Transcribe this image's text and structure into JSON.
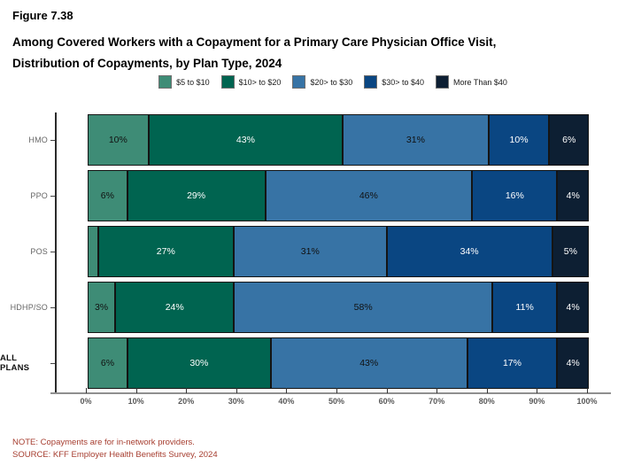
{
  "figure": {
    "label": "Figure 7.38",
    "title_line1": "Among Covered Workers with a Copayment for a Primary Care Physician Office Visit,",
    "title_line2": "Distribution of Copayments, by Plan Type, 2024"
  },
  "legend": [
    {
      "label": "$5 to $10",
      "color": "#3e8c76"
    },
    {
      "label": "$10> to $20",
      "color": "#006450"
    },
    {
      "label": "$20> to $30",
      "color": "#3773a5"
    },
    {
      "label": "$30> to $40",
      "color": "#0a4682"
    },
    {
      "label": "More Than $40",
      "color": "#0d1f33"
    }
  ],
  "chart_data": {
    "type": "bar",
    "orientation": "horizontal",
    "stacked": true,
    "title": "Among Covered Workers with a Copayment for a Primary Care Physician Office Visit, Distribution of Copayments, by Plan Type, 2024",
    "categories": [
      "HMO",
      "PPO",
      "POS",
      "HDHP/SO",
      "ALL PLANS"
    ],
    "series": [
      {
        "name": "$5 to $10",
        "color": "#3e8c76",
        "label_color": "#111111",
        "values": [
          10,
          6,
          2,
          3,
          6
        ],
        "labels": [
          "10%",
          "6%",
          "",
          "3%",
          "6%"
        ]
      },
      {
        "name": "$10> to $20",
        "color": "#006450",
        "label_color": "#ffffff",
        "values": [
          43,
          29,
          27,
          24,
          30
        ],
        "labels": [
          "43%",
          "29%",
          "27%",
          "24%",
          "30%"
        ]
      },
      {
        "name": "$20> to $30",
        "color": "#3773a5",
        "label_color": "#111111",
        "values": [
          31,
          46,
          31,
          58,
          43
        ],
        "labels": [
          "31%",
          "46%",
          "31%",
          "58%",
          "43%"
        ]
      },
      {
        "name": "$30> to $40",
        "color": "#0a4682",
        "label_color": "#ffffff",
        "values": [
          10,
          16,
          34,
          11,
          17
        ],
        "labels": [
          "10%",
          "16%",
          "34%",
          "11%",
          "17%"
        ]
      },
      {
        "name": "More Than $40",
        "color": "#0d1f33",
        "label_color": "#ffffff",
        "values": [
          6,
          4,
          5,
          4,
          4
        ],
        "labels": [
          "6%",
          "4%",
          "5%",
          "4%",
          "4%"
        ]
      }
    ],
    "x_axis": {
      "range": [
        0,
        100
      ],
      "ticks": [
        "0%",
        "10%",
        "20%",
        "30%",
        "40%",
        "50%",
        "60%",
        "70%",
        "80%",
        "90%",
        "100%"
      ]
    },
    "legend_position": "top-center",
    "grid": false
  },
  "notes": {
    "note": "NOTE: Copayments are for in-network providers.",
    "source": "SOURCE: KFF Employer Health Benefits Survey, 2024",
    "color": "#a63d2f"
  }
}
